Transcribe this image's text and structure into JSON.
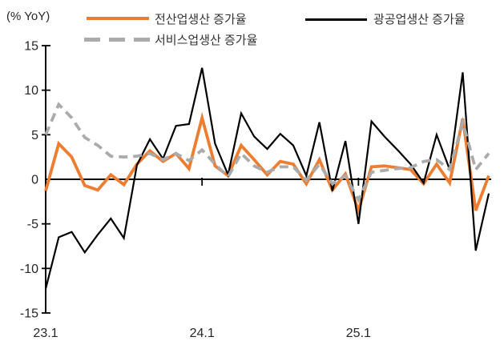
{
  "header": {
    "unit_label": "(% YoY)"
  },
  "legend": {
    "items": [
      {
        "id": "all-industry",
        "label": "전산업생산 증가율",
        "color": "#ED7D31",
        "line_style": "solid"
      },
      {
        "id": "mining-manufacturing",
        "label": "광공업생산 증가율",
        "color": "#000000",
        "line_style": "solid"
      },
      {
        "id": "services",
        "label": "서비스업생산 증가율",
        "color": "#ABABAB",
        "line_style": "dashed"
      }
    ]
  },
  "chart_data": {
    "type": "line",
    "title": "",
    "xlabel": "",
    "ylabel": "(% YoY)",
    "ylim": [
      -15,
      15
    ],
    "yticks": [
      15,
      10,
      5,
      0,
      -5,
      -10,
      -15
    ],
    "grid": false,
    "legend_position": "top",
    "x": [
      "23.1",
      "23.2",
      "23.3",
      "23.4",
      "23.5",
      "23.6",
      "23.7",
      "23.8",
      "23.9",
      "23.10",
      "23.11",
      "23.12",
      "24.1",
      "24.2",
      "24.3",
      "24.4",
      "24.5",
      "24.6",
      "24.7",
      "24.8",
      "24.9",
      "24.10",
      "24.11",
      "24.12",
      "25.1",
      "25.2",
      "25.3",
      "25.4",
      "25.5",
      "25.6",
      "25.7",
      "25.8",
      "25.9",
      "25.10",
      "25.11"
    ],
    "xticks": [
      {
        "label": "23.1",
        "index": 0
      },
      {
        "label": "24.1",
        "index": 12
      },
      {
        "label": "25.1",
        "index": 24
      }
    ],
    "series": [
      {
        "id": "all-industry",
        "name": "전산업생산 증가율",
        "color": "#ED7D31",
        "style": "solid",
        "values": [
          -1.3,
          4.0,
          2.5,
          -0.7,
          -1.2,
          0.5,
          -0.6,
          1.7,
          3.2,
          2.0,
          2.9,
          1.2,
          6.9,
          1.5,
          0.4,
          3.8,
          2.2,
          0.5,
          2.0,
          1.7,
          -0.5,
          2.2,
          -1.2,
          0.6,
          -3.5,
          1.4,
          1.5,
          1.3,
          1.1,
          -0.5,
          1.7,
          -0.4,
          6.8,
          -3.5,
          0.4
        ]
      },
      {
        "id": "mining-manufacturing",
        "name": "광공업생산 증가율",
        "color": "#000000",
        "style": "solid",
        "values": [
          -12.3,
          -6.5,
          -5.9,
          -8.2,
          -6.2,
          -4.4,
          -6.6,
          1.6,
          4.5,
          2.3,
          6.0,
          6.2,
          12.5,
          4.0,
          0.5,
          7.4,
          4.8,
          3.4,
          5.1,
          3.8,
          0.4,
          6.4,
          -1.3,
          4.3,
          -5.0,
          6.5,
          4.8,
          3.3,
          1.7,
          -0.4,
          5.0,
          1.1,
          12.0,
          -8.0,
          -1.6
        ]
      },
      {
        "id": "services",
        "name": "서비스업생산 증가율",
        "color": "#ABABAB",
        "style": "dashed",
        "values": [
          5.0,
          8.4,
          6.9,
          4.7,
          3.8,
          2.6,
          2.5,
          2.6,
          2.9,
          2.2,
          2.9,
          2.1,
          3.3,
          1.7,
          0.3,
          2.9,
          1.5,
          0.8,
          1.4,
          1.4,
          -0.1,
          1.7,
          -0.5,
          0.4,
          -2.3,
          0.8,
          1.0,
          1.2,
          1.3,
          2.0,
          2.2,
          1.1,
          6.4,
          1.1,
          2.9
        ]
      }
    ]
  },
  "colors": {
    "background": "#FFFFFF",
    "axis": "#000000",
    "text": "#262626",
    "accent_orange": "#ED7D31",
    "accent_gray": "#ABABAB"
  }
}
